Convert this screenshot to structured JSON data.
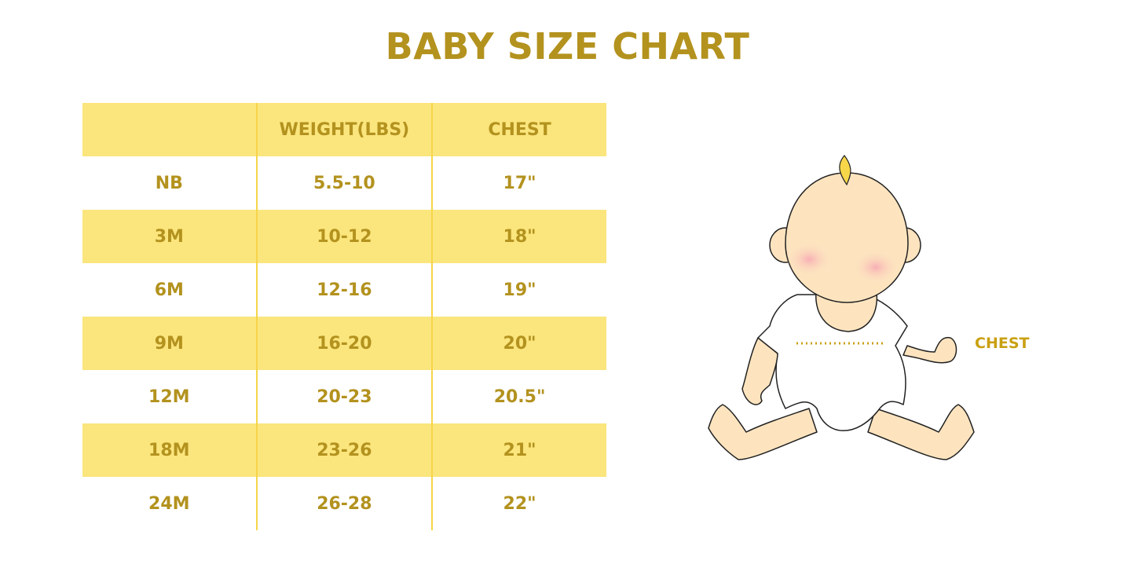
{
  "title": "BABY SIZE CHART",
  "table": {
    "headers": [
      "",
      "WEIGHT(LBS)",
      "CHEST"
    ],
    "rows": [
      [
        "NB",
        "5.5-10",
        "17\""
      ],
      [
        "3M",
        "10-12",
        "18\""
      ],
      [
        "6M",
        "12-16",
        "19\""
      ],
      [
        "9M",
        "16-20",
        "20\""
      ],
      [
        "12M",
        "20-23",
        "20.5\""
      ],
      [
        "18M",
        "23-26",
        "21\""
      ],
      [
        "24M",
        "26-28",
        "22\""
      ]
    ]
  },
  "illustration": {
    "chest_label": "CHEST"
  },
  "colors": {
    "text": "#b3921e",
    "band": "#fbe57d",
    "skin": "#fde4bf"
  }
}
